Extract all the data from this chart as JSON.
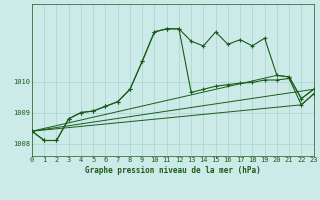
{
  "title": "Graphe pression niveau de la mer (hPa)",
  "bg_color": "#cceae8",
  "grid_color": "#aad4d0",
  "line_color": "#1a5c1a",
  "x_min": 0,
  "x_max": 23,
  "y_min": 1007.6,
  "y_max": 1012.5,
  "yticks": [
    1008,
    1009,
    1010
  ],
  "xticks": [
    0,
    1,
    2,
    3,
    4,
    5,
    6,
    7,
    8,
    9,
    10,
    11,
    12,
    13,
    14,
    15,
    16,
    17,
    18,
    19,
    20,
    21,
    22,
    23
  ],
  "series1_x": [
    0,
    1,
    2,
    3,
    4,
    5,
    6,
    7,
    8,
    9,
    10,
    11,
    12,
    13,
    14,
    15,
    16,
    17,
    18,
    19,
    20,
    21,
    22,
    23
  ],
  "series1_y": [
    1008.4,
    1008.1,
    1008.1,
    1008.8,
    1009.0,
    1009.05,
    1009.2,
    1009.35,
    1009.75,
    1010.65,
    1011.6,
    1011.7,
    1011.7,
    1011.3,
    1011.15,
    1011.6,
    1011.2,
    1011.35,
    1011.15,
    1011.4,
    1010.2,
    1010.15,
    1009.45,
    1009.75
  ],
  "series2_x": [
    0,
    1,
    2,
    3,
    4,
    5,
    6,
    7,
    8,
    9,
    10,
    11,
    12,
    13,
    14,
    15,
    16,
    17,
    18,
    19,
    20,
    21,
    22,
    23
  ],
  "series2_y": [
    1008.4,
    1008.1,
    1008.1,
    1008.8,
    1009.0,
    1009.05,
    1009.2,
    1009.35,
    1009.75,
    1010.65,
    1011.6,
    1011.7,
    1011.7,
    1009.65,
    1009.75,
    1009.85,
    1009.9,
    1009.95,
    1009.97,
    1010.05,
    1010.05,
    1010.1,
    1009.25,
    1009.6
  ],
  "series3_x": [
    0,
    20,
    21,
    22,
    23
  ],
  "series3_y": [
    1008.4,
    1010.2,
    1010.15,
    1009.45,
    1009.75
  ],
  "series4_x": [
    0,
    22,
    23
  ],
  "series4_y": [
    1008.4,
    1009.25,
    1009.6
  ],
  "series5_x": [
    0,
    23
  ],
  "series5_y": [
    1008.4,
    1009.75
  ]
}
